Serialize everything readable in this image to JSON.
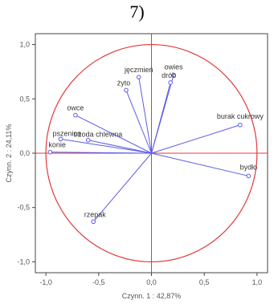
{
  "panel_label": "7)",
  "chart_data": {
    "type": "scatter",
    "title": "",
    "xlabel": "Czynn. 1 : 42,87%",
    "ylabel": "Czynn. 2 : 24,11%",
    "xlim": [
      -1.1,
      1.1
    ],
    "ylim": [
      -1.1,
      1.1
    ],
    "x_ticks": [
      "-1,0",
      "-0,5",
      "0,0",
      "0,5",
      "1,0"
    ],
    "y_ticks": [
      "1,0",
      "0,5",
      "0,0",
      "-0,5",
      "-1,0"
    ],
    "grid": false,
    "unit_circle": true,
    "colors": {
      "vectors": "#5b5be6",
      "circle": "#e23a3a",
      "ref_lines": "#e23a3a",
      "frame": "#444444"
    },
    "points": [
      {
        "label": "owies",
        "x": 0.21,
        "y": 0.72
      },
      {
        "label": "drób",
        "x": 0.18,
        "y": 0.65
      },
      {
        "label": "jęczmień",
        "x": -0.12,
        "y": 0.7
      },
      {
        "label": "żyto",
        "x": -0.24,
        "y": 0.58
      },
      {
        "label": "owce",
        "x": -0.72,
        "y": 0.35
      },
      {
        "label": "pszenica",
        "x": -0.86,
        "y": 0.13
      },
      {
        "label": "trzoda chlewna",
        "x": -0.6,
        "y": 0.12
      },
      {
        "label": "konie",
        "x": -0.96,
        "y": 0.01
      },
      {
        "label": "burak cukrowy",
        "x": 0.84,
        "y": 0.26
      },
      {
        "label": "bydło",
        "x": 0.92,
        "y": -0.21
      },
      {
        "label": "rzepak",
        "x": -0.55,
        "y": -0.63
      }
    ]
  }
}
